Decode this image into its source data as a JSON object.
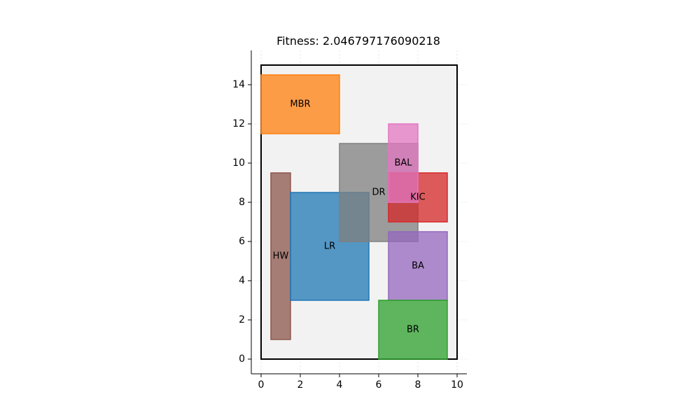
{
  "chart_data": {
    "type": "rectangles",
    "title": "Fitness: 2.046797176090218",
    "xlabel": "",
    "ylabel": "",
    "xlim": [
      -0.5,
      10.5
    ],
    "ylim": [
      -0.75,
      15.75
    ],
    "xticks": [
      0,
      2,
      4,
      6,
      8,
      10
    ],
    "yticks": [
      0,
      2,
      4,
      6,
      8,
      10,
      12,
      14
    ],
    "grid": true,
    "boundary": {
      "x": 0,
      "y": 0,
      "w": 10,
      "h": 15,
      "fill": "#f2f2f2",
      "stroke": "#000000"
    },
    "rooms": [
      {
        "name": "MBR",
        "x": 0,
        "y": 11.5,
        "w": 4,
        "h": 3,
        "color": "#ff7f0e"
      },
      {
        "name": "HW",
        "x": 0.5,
        "y": 1,
        "w": 1,
        "h": 8.5,
        "color": "#8c564b"
      },
      {
        "name": "LR",
        "x": 1.5,
        "y": 3,
        "w": 4,
        "h": 5.5,
        "color": "#1f77b4"
      },
      {
        "name": "DR",
        "x": 4,
        "y": 6,
        "w": 4,
        "h": 5,
        "color": "#7f7f7f"
      },
      {
        "name": "KIC",
        "x": 6.5,
        "y": 7,
        "w": 3,
        "h": 2.5,
        "color": "#d62728"
      },
      {
        "name": "BAL",
        "x": 6.5,
        "y": 8,
        "w": 1.5,
        "h": 4,
        "color": "#e377c2"
      },
      {
        "name": "BA",
        "x": 6.5,
        "y": 3,
        "w": 3,
        "h": 3.5,
        "color": "#9467bd"
      },
      {
        "name": "BR",
        "x": 6,
        "y": 0,
        "w": 3.5,
        "h": 3,
        "color": "#2ca02c"
      }
    ]
  }
}
